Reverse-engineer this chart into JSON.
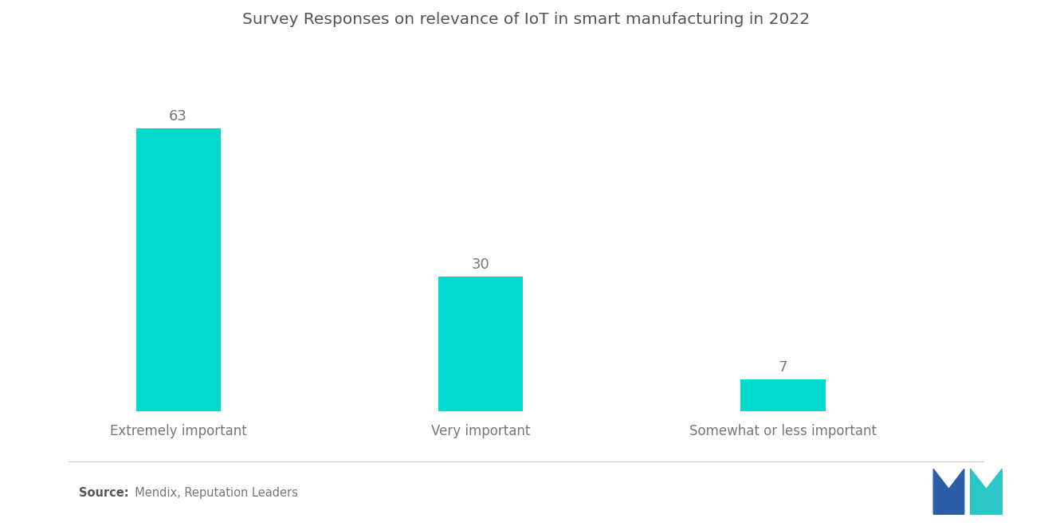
{
  "title": "Survey Responses on relevance of IoT in smart manufacturing in 2022",
  "categories": [
    "Extremely important",
    "Very important",
    "Somewhat or less important"
  ],
  "values": [
    63,
    30,
    7
  ],
  "bar_color": "#00D9CB",
  "background_color": "#ffffff",
  "title_fontsize": 14.5,
  "label_fontsize": 12,
  "value_fontsize": 13,
  "source_bold": "Source:",
  "source_rest": "  Mendix, Reputation Leaders",
  "ylim": [
    0,
    80
  ],
  "bar_width": 0.28,
  "x_positions": [
    1,
    2,
    3
  ],
  "xlim": [
    0.45,
    3.85
  ],
  "logo_blue": "#2B5EA7",
  "logo_teal": "#2DC6C6",
  "tick_color": "#777777",
  "title_color": "#555555"
}
